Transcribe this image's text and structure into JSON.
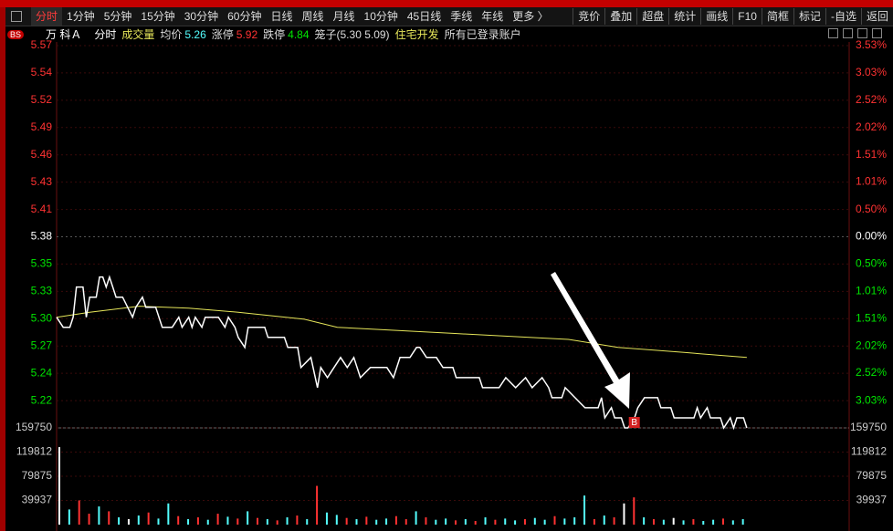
{
  "toolbar": {
    "tabs": [
      "分时",
      "1分钟",
      "5分钟",
      "15分钟",
      "30分钟",
      "60分钟",
      "日线",
      "周线",
      "月线",
      "10分钟",
      "45日线",
      "季线",
      "年线",
      "更多 〉"
    ],
    "buttons": [
      "竞价",
      "叠加",
      "超盘",
      "统计",
      "画线",
      "F10",
      "简框",
      "标记",
      "-自选",
      "返回"
    ]
  },
  "info_bar": {
    "badge": "BS",
    "stock_name": "万 科Ａ",
    "mode": "分时",
    "indicator": "成交量",
    "avg_label": "均价",
    "avg_value": 5.26,
    "limit_up_label": "涨停",
    "limit_up": 5.92,
    "limit_down_label": "跌停",
    "limit_down": 4.84,
    "cage": "笼子(5.30 5.09)",
    "sector": "住宅开发",
    "account": "所有已登录账户"
  },
  "chart_data": {
    "type": "line",
    "grid": true,
    "xlim": [
      0,
      240
    ],
    "ylim": [
      5.19,
      5.57
    ],
    "yticks": [
      {
        "value": 5.57,
        "label": "5.57"
      },
      {
        "value": 5.5429,
        "label": "5.54"
      },
      {
        "value": 5.5157,
        "label": "5.52"
      },
      {
        "value": 5.4886,
        "label": "5.49"
      },
      {
        "value": 5.4614,
        "label": "5.46"
      },
      {
        "value": 5.4343,
        "label": "5.43"
      },
      {
        "value": 5.4071,
        "label": "5.41"
      },
      {
        "value": 5.38,
        "label": "5.38"
      },
      {
        "value": 5.3529,
        "label": "5.35"
      },
      {
        "value": 5.3257,
        "label": "5.33"
      },
      {
        "value": 5.2986,
        "label": "5.30"
      },
      {
        "value": 5.2714,
        "label": "5.27"
      },
      {
        "value": 5.2443,
        "label": "5.24"
      },
      {
        "value": 5.2171,
        "label": "5.22"
      }
    ],
    "y2lim": [
      -3.53,
      3.53
    ],
    "y2ticks": [
      {
        "value": 3.53,
        "label": "3.53%"
      },
      {
        "value": 3.03,
        "label": "3.03%"
      },
      {
        "value": 2.52,
        "label": "2.52%"
      },
      {
        "value": 2.02,
        "label": "2.02%"
      },
      {
        "value": 1.51,
        "label": "1.51%"
      },
      {
        "value": 1.01,
        "label": "1.01%"
      },
      {
        "value": 0.5,
        "label": "0.50%"
      },
      {
        "value": 0,
        "label": "0.00%"
      },
      {
        "value": -0.5,
        "label": "0.50%"
      },
      {
        "value": -1.01,
        "label": "1.01%"
      },
      {
        "value": -1.51,
        "label": "1.51%"
      },
      {
        "value": -2.02,
        "label": "2.02%"
      },
      {
        "value": -2.52,
        "label": "2.52%"
      },
      {
        "value": -3.03,
        "label": "3.03%"
      }
    ],
    "series": [
      {
        "color": "#ffffff",
        "x": [
          0,
          2,
          4,
          5,
          6,
          8,
          9,
          10,
          11,
          12,
          13,
          14,
          15,
          16,
          17,
          18,
          20,
          23,
          24,
          26,
          27,
          28,
          30,
          32,
          35,
          37,
          38,
          40,
          41,
          42,
          44,
          45,
          49,
          51,
          52,
          54,
          55,
          57,
          58,
          63,
          64,
          69,
          70,
          71,
          73,
          74,
          77,
          79,
          80,
          82,
          84,
          86,
          88,
          90,
          92,
          95,
          100,
          102,
          104,
          107,
          109,
          110,
          112,
          115,
          117,
          120,
          121,
          128,
          129,
          134,
          136,
          139,
          142,
          144,
          147,
          149,
          150,
          153,
          154,
          157,
          160,
          164,
          165,
          166,
          168,
          169,
          171,
          172,
          173,
          175,
          176,
          178,
          182,
          183,
          186,
          187,
          193,
          194,
          195,
          197,
          198,
          201,
          202,
          204,
          205,
          206,
          208,
          209
        ],
        "values": [
          5.3,
          5.29,
          5.29,
          5.3,
          5.33,
          5.33,
          5.3,
          5.32,
          5.32,
          5.32,
          5.34,
          5.34,
          5.33,
          5.34,
          5.33,
          5.32,
          5.32,
          5.3,
          5.31,
          5.32,
          5.31,
          5.31,
          5.31,
          5.29,
          5.29,
          5.3,
          5.29,
          5.3,
          5.29,
          5.3,
          5.29,
          5.3,
          5.3,
          5.29,
          5.3,
          5.29,
          5.28,
          5.27,
          5.29,
          5.29,
          5.28,
          5.28,
          5.27,
          5.27,
          5.27,
          5.25,
          5.26,
          5.23,
          5.25,
          5.24,
          5.25,
          5.26,
          5.25,
          5.26,
          5.24,
          5.25,
          5.25,
          5.24,
          5.26,
          5.26,
          5.27,
          5.27,
          5.26,
          5.26,
          5.25,
          5.25,
          5.24,
          5.24,
          5.23,
          5.23,
          5.24,
          5.23,
          5.24,
          5.23,
          5.24,
          5.23,
          5.22,
          5.22,
          5.23,
          5.22,
          5.21,
          5.21,
          5.22,
          5.2,
          5.21,
          5.2,
          5.2,
          5.19,
          5.19,
          5.2,
          5.21,
          5.22,
          5.22,
          5.21,
          5.21,
          5.2,
          5.2,
          5.21,
          5.2,
          5.21,
          5.2,
          5.2,
          5.19,
          5.2,
          5.19,
          5.2,
          5.2,
          5.19
        ]
      },
      {
        "color": "#e6e65a",
        "x": [
          0,
          10,
          25,
          40,
          55,
          75,
          85,
          120,
          155,
          170,
          190,
          209
        ],
        "values": [
          5.3,
          5.305,
          5.311,
          5.309,
          5.305,
          5.298,
          5.29,
          5.284,
          5.278,
          5.27,
          5.265,
          5.26
        ]
      }
    ],
    "annotations": [
      {
        "text": "B",
        "x": 173,
        "value": 5.19
      }
    ],
    "volume": {
      "type": "bar",
      "ylim": [
        0,
        159750
      ],
      "yticks": [
        159750,
        119812,
        79875,
        39937
      ],
      "x": [
        0,
        3,
        6,
        9,
        12,
        15,
        18,
        21,
        24,
        27,
        30,
        33,
        36,
        39,
        42,
        45,
        48,
        51,
        54,
        57,
        60,
        63,
        66,
        69,
        72,
        75,
        78,
        81,
        84,
        87,
        90,
        93,
        96,
        99,
        102,
        105,
        108,
        111,
        114,
        117,
        120,
        123,
        126,
        129,
        132,
        135,
        138,
        141,
        144,
        147,
        150,
        153,
        156,
        159,
        162,
        165,
        168,
        171,
        174,
        177,
        180,
        183,
        186,
        189,
        192,
        195,
        198,
        201,
        204,
        207
      ],
      "values": [
        128000,
        25000,
        40000,
        18000,
        30000,
        22000,
        12000,
        9000,
        15000,
        20000,
        10000,
        35000,
        14000,
        9000,
        12000,
        8000,
        18000,
        13000,
        10000,
        22000,
        11000,
        9000,
        7000,
        12000,
        15000,
        9000,
        64000,
        20000,
        16000,
        11000,
        9000,
        13000,
        8000,
        10000,
        14000,
        9000,
        22000,
        12000,
        8000,
        10000,
        7000,
        9000,
        6000,
        12000,
        8000,
        10000,
        7000,
        9000,
        11000,
        8000,
        14000,
        10000,
        12000,
        48000,
        9000,
        15000,
        12000,
        35000,
        45000,
        12000,
        9000,
        8000,
        11000,
        7000,
        9000,
        6000,
        8000,
        10000,
        7000,
        9000
      ],
      "colors": [
        "#ffffff",
        "#54ffff",
        "#ff3232",
        "#ff3232",
        "#54ffff",
        "#ff3232",
        "#54ffff",
        "#ffffff",
        "#54ffff",
        "#ff3232",
        "#54ffff",
        "#54ffff",
        "#ff3232",
        "#54ffff",
        "#ff3232",
        "#54ffff",
        "#ff3232",
        "#54ffff",
        "#ff3232",
        "#54ffff",
        "#ff3232",
        "#54ffff",
        "#ff3232",
        "#54ffff",
        "#ff3232",
        "#54ffff",
        "#ff3232",
        "#54ffff",
        "#54ffff",
        "#ff3232",
        "#54ffff",
        "#ff3232",
        "#54ffff",
        "#54ffff",
        "#ff3232",
        "#ff3232",
        "#54ffff",
        "#ff3232",
        "#54ffff",
        "#54ffff",
        "#ff3232",
        "#54ffff",
        "#ff3232",
        "#54ffff",
        "#ff3232",
        "#54ffff",
        "#54ffff",
        "#ff3232",
        "#54ffff",
        "#54ffff",
        "#ff3232",
        "#54ffff",
        "#54ffff",
        "#54ffff",
        "#ff3232",
        "#54ffff",
        "#ff3232",
        "#ffffff",
        "#ff3232",
        "#54ffff",
        "#ff3232",
        "#54ffff",
        "#ffffff",
        "#54ffff",
        "#ff3232",
        "#54ffff",
        "#54ffff",
        "#ff3232",
        "#54ffff",
        "#54ffff"
      ]
    }
  }
}
